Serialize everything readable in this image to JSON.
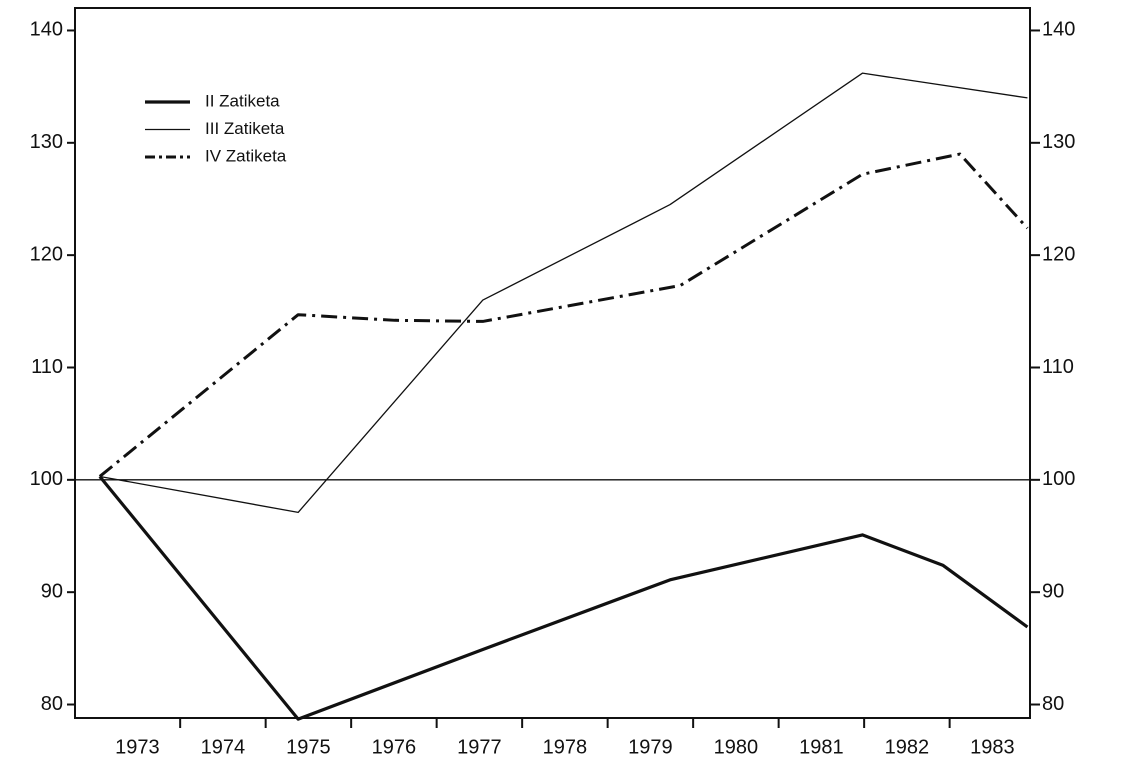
{
  "chart_data": {
    "type": "line",
    "series": [
      {
        "name": "II  Zatiketa",
        "color": "#111",
        "style": "thick",
        "x": [
          1972.56,
          1974.88,
          1977.04,
          1979.23,
          1981.48,
          1982.42,
          1983.41
        ],
        "values": [
          100.3,
          78.7,
          84.9,
          91.1,
          95.1,
          92.4,
          86.9
        ]
      },
      {
        "name": "III  Zatiketa",
        "color": "#111",
        "style": "thin",
        "x": [
          1972.56,
          1974.88,
          1977.04,
          1979.23,
          1981.48,
          1983.41
        ],
        "values": [
          100.3,
          97.1,
          116,
          124.5,
          136.2,
          134
        ]
      },
      {
        "name": "IV  Zatiketa",
        "color": "#111",
        "style": "dashdot",
        "x": [
          1972.56,
          1974.88,
          1976.01,
          1977.04,
          1979.35,
          1981.48,
          1982.62,
          1983.41
        ],
        "values": [
          100.3,
          114.7,
          114.2,
          114.1,
          117.3,
          127.2,
          129,
          122.4
        ]
      }
    ],
    "reference_line": 100,
    "xlim": [
      1972.27,
      1983.44
    ],
    "xticks": [
      1973,
      1974,
      1975,
      1976,
      1977,
      1978,
      1979,
      1980,
      1981,
      1982,
      1983
    ],
    "ylim": [
      78.8,
      142
    ],
    "yticks": [
      80,
      90,
      100,
      110,
      120,
      130,
      140
    ],
    "y2lim": [
      78.8,
      142
    ],
    "y2ticks": [
      80,
      90,
      100,
      110,
      120,
      130,
      140
    ]
  }
}
